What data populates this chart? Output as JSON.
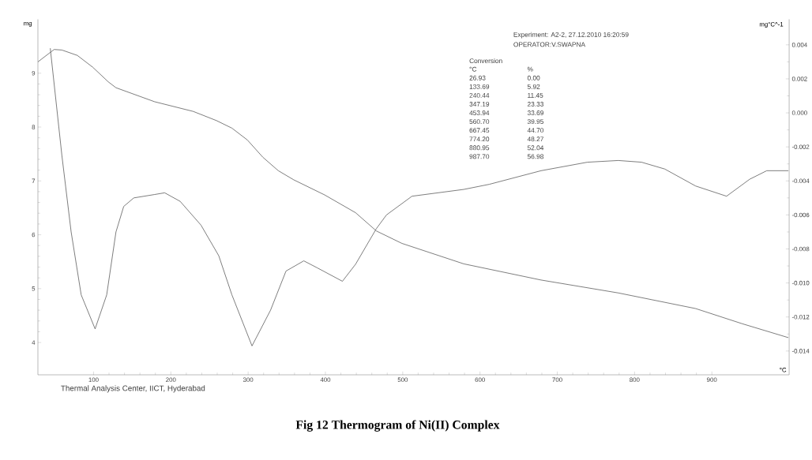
{
  "chart_data": {
    "type": "line",
    "title": "Fig 12  Thermogram of  Ni(II) Complex",
    "xlabel": "°C",
    "ylabel": "mg",
    "y2label": "mg°C^-1",
    "xlim": [
      28,
      1000
    ],
    "xticks": [
      100,
      200,
      300,
      400,
      500,
      600,
      700,
      800,
      900
    ],
    "ylim": [
      3.4,
      10
    ],
    "yticks": [
      4,
      5,
      6,
      7,
      8,
      9
    ],
    "y2lim": [
      -0.0154,
      0.0055
    ],
    "y2ticks": [
      -0.014,
      -0.012,
      {
        "value": -0.01,
        "label": "-0.010"
      },
      -0.008,
      -0.006,
      -0.004,
      -0.002,
      {
        "value": 0,
        "label": "0.000"
      },
      0.002,
      0.004
    ],
    "marker": "none",
    "series": [
      {
        "color": "#5a5a5a",
        "x": [
          28,
          49,
          59,
          79,
          99,
          119,
          129,
          179,
          229,
          259,
          279,
          299,
          319,
          339,
          359,
          399,
          439,
          466,
          499,
          579,
          679,
          779,
          879,
          939,
          999
        ],
        "values": [
          9.21,
          9.44,
          9.43,
          9.33,
          9.11,
          8.84,
          8.73,
          8.47,
          8.29,
          8.12,
          7.98,
          7.76,
          7.44,
          7.19,
          7.02,
          6.74,
          6.41,
          6.07,
          5.84,
          5.46,
          5.16,
          4.92,
          4.63,
          4.35,
          4.09
        ]
      },
      {
        "color": "#5a5a5a",
        "axis": "y2",
        "x": [
          44,
          59,
          71,
          84,
          102,
          117,
          129,
          139,
          152,
          179,
          192,
          212,
          239,
          262,
          279,
          305,
          329,
          349,
          372,
          389,
          422,
          439,
          466,
          479,
          512,
          579,
          612,
          679,
          739,
          779,
          809,
          839,
          879,
          919,
          949,
          971,
          999
        ],
        "values": [
          0.0038,
          -0.0025,
          -0.007,
          -0.0107,
          -0.0127,
          -0.0107,
          -0.007,
          -0.0055,
          -0.005,
          -0.0048,
          -0.0047,
          -0.0052,
          -0.0066,
          -0.0084,
          -0.0107,
          -0.0137,
          -0.0116,
          -0.0093,
          -0.0087,
          -0.0091,
          -0.0099,
          -0.0089,
          -0.0068,
          -0.006,
          -0.0049,
          -0.0045,
          -0.0042,
          -0.0034,
          -0.0029,
          -0.0028,
          -0.0029,
          -0.0033,
          -0.0043,
          -0.0049,
          -0.0039,
          -0.0034,
          -0.0034
        ]
      }
    ],
    "annotations": [
      "Experiment: A2-2, 27.12.2010 16:20:59",
      "OPERATOR:V.SWAPNA",
      "Thermal Analysis Center, IICT, Hyderabad",
      "Conversion",
      "°C",
      "%",
      "26.93",
      "0.00",
      "133.69",
      "5.92",
      "240.44",
      "11.45",
      "347.19",
      "23.33",
      "453.94",
      "33.69",
      "560.70",
      "39.95",
      "667.45",
      "44.70",
      "774.20",
      "48.27",
      "880.95",
      "52.04",
      "987.70",
      "56.98"
    ]
  }
}
